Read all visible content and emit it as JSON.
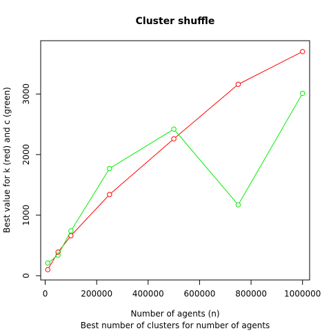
{
  "chart_data": {
    "type": "line",
    "title": "Cluster shuffle",
    "xlabel": "Number of agents (n)",
    "subtitle": "Best number of clusters for number of agents",
    "ylabel": "Best value for k (red) and c (green)",
    "x": [
      10000,
      50000,
      100000,
      250000,
      500000,
      750000,
      1000000
    ],
    "xlim": [
      -17500,
      1027500
    ],
    "ylim": [
      -70,
      3880
    ],
    "x_ticks": [
      0,
      200000,
      400000,
      600000,
      800000,
      1000000
    ],
    "x_tick_labels": [
      "0",
      "200000",
      "400000",
      "600000",
      "800000",
      "1000000"
    ],
    "y_ticks": [
      0,
      1000,
      2000,
      3000
    ],
    "y_tick_labels": [
      "0",
      "1000",
      "2000",
      "3000"
    ],
    "grid": false,
    "legend": "none",
    "series": [
      {
        "color": "#ff0000",
        "values": [
          100,
          390,
          660,
          1340,
          2260,
          3160,
          3700
        ]
      },
      {
        "color": "#00ee00",
        "values": [
          210,
          340,
          740,
          1770,
          2420,
          1170,
          3010
        ]
      }
    ]
  }
}
